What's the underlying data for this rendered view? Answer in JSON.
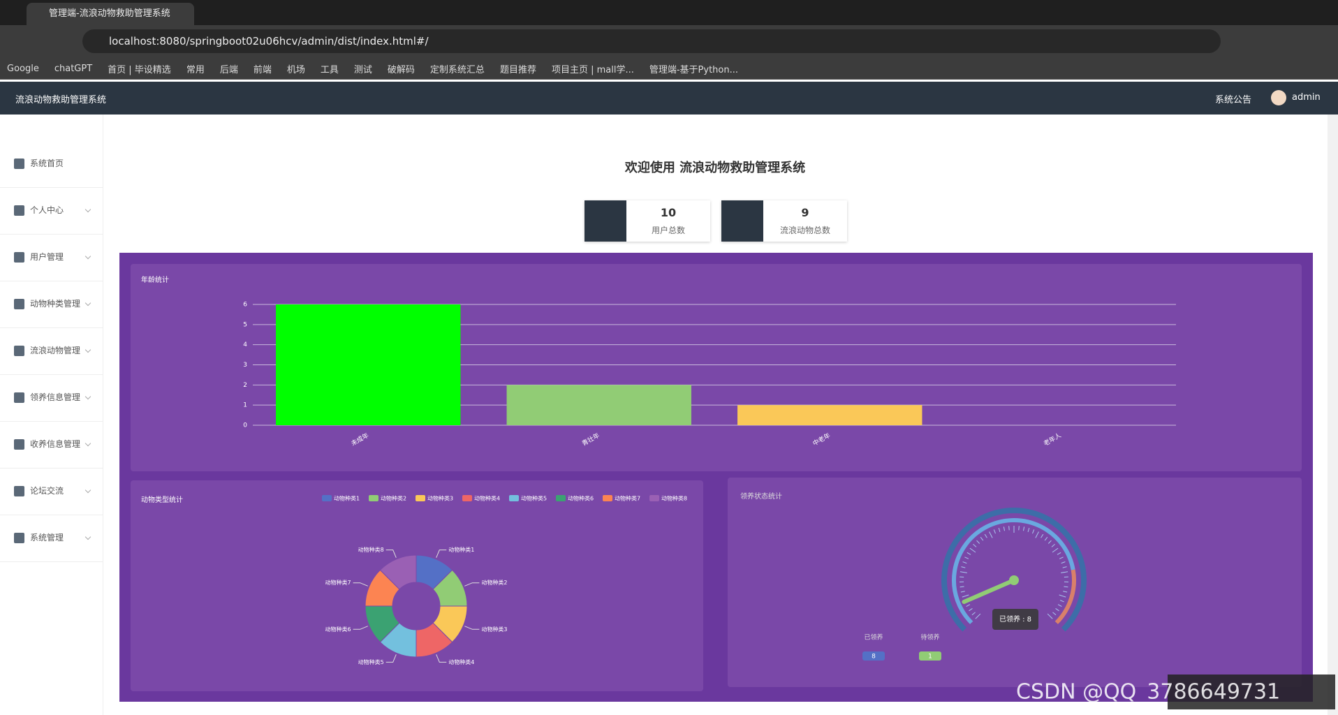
{
  "browser": {
    "tab_title": "管理端-流浪动物救助管理系统",
    "url": "localhost:8080/springboot02u06hcv/admin/dist/index.html#/",
    "bookmarks": [
      "Google",
      "chatGPT",
      "首页 | 毕设精选",
      "常用",
      "后端",
      "前端",
      "机场",
      "工具",
      "测试",
      "破解码",
      "定制系统汇总",
      "题目推荐",
      "项目主页 | mall学...",
      "管理端-基于Python..."
    ]
  },
  "header": {
    "title": "流浪动物救助管理系统",
    "notice": "系统公告",
    "user": "admin"
  },
  "sidebar": [
    "系统首页",
    "个人中心",
    "用户管理",
    "动物种类管理",
    "流浪动物管理",
    "领养信息管理",
    "收养信息管理",
    "论坛交流",
    "系统管理"
  ],
  "welcome": "欢迎使用 流浪动物救助管理系统",
  "stats": [
    {
      "value": 10,
      "label": "用户总数"
    },
    {
      "value": 9,
      "label": "流浪动物总数"
    }
  ],
  "age_chart": {
    "type": "bar",
    "title": "年龄统计",
    "categories": [
      "未成年",
      "青壮年",
      "中老年",
      "老年人"
    ],
    "values": [
      6,
      2,
      1,
      0
    ],
    "colors": [
      "#00ff00",
      "#91cc75",
      "#fac858",
      "#ee6666"
    ],
    "ylim": [
      0,
      6
    ],
    "yticks": [
      0,
      1,
      2,
      3,
      4,
      5,
      6
    ],
    "grid": true
  },
  "type_chart": {
    "type": "pie",
    "title": "动物类型统计",
    "categories": [
      "动物种类1",
      "动物种类2",
      "动物种类3",
      "动物种类4",
      "动物种类5",
      "动物种类6",
      "动物种类7",
      "动物种类8"
    ],
    "values": [
      1,
      1,
      1,
      1,
      1,
      1,
      1,
      1
    ],
    "colors": [
      "#5470c6",
      "#91cc75",
      "#fac858",
      "#ee6666",
      "#73c0de",
      "#3ba272",
      "#fc8452",
      "#9a60b4"
    ]
  },
  "adopt_chart": {
    "type": "gauge",
    "title": "领养状态统计",
    "categories": [
      "已领养",
      "待领养"
    ],
    "values": [
      8,
      1
    ],
    "colors": [
      "#5470c6",
      "#91cc75"
    ],
    "range": [
      0,
      100
    ],
    "tooltip": "已领养 : 8"
  },
  "watermark": "CSDN @QQ_3786649731"
}
